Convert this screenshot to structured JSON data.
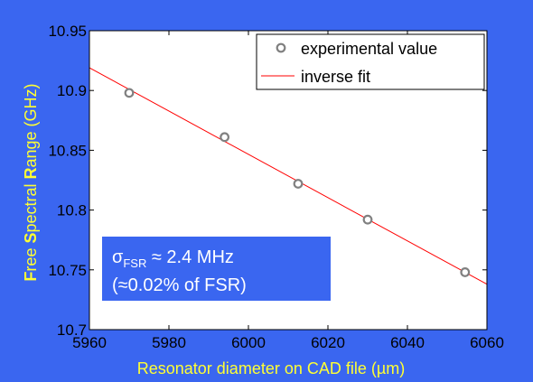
{
  "chart_data": {
    "type": "scatter",
    "xlabel": "Resonator diameter on CAD file (µm)",
    "ylabel_parts": [
      {
        "text": "F",
        "highlight": true
      },
      {
        "text": "ree ",
        "highlight": false
      },
      {
        "text": "S",
        "highlight": true
      },
      {
        "text": "pectral ",
        "highlight": false
      },
      {
        "text": "R",
        "highlight": true
      },
      {
        "text": "ange (GHz)",
        "highlight": false
      }
    ],
    "xlim": [
      5960,
      6060
    ],
    "ylim": [
      10.7,
      10.95
    ],
    "xticks": [
      "5960",
      "5980",
      "6000",
      "6020",
      "6040",
      "6060"
    ],
    "yticks": [
      "10.7",
      "10.75",
      "10.8",
      "10.85",
      "10.9",
      "10.95"
    ],
    "grid": false,
    "legend_position": "top-right",
    "series": [
      {
        "name": "experimental value",
        "kind": "markers",
        "color": "#808080",
        "x": [
          5970,
          5994,
          6012.5,
          6030,
          6054.5
        ],
        "y": [
          10.898,
          10.861,
          10.822,
          10.792,
          10.748
        ]
      },
      {
        "name": "inverse fit",
        "kind": "line",
        "color": "#ff0000",
        "x": [
          5960,
          6060
        ],
        "y": [
          10.919,
          10.738
        ]
      }
    ],
    "annotation": {
      "symbol": "σ",
      "subscript": "FSR",
      "line1_rest": " ≈ 2.4 MHz",
      "line2": "(≈0.02% of FSR)"
    },
    "colors": {
      "background": "#3a66f0",
      "axis_label": "#ffff33",
      "annotation_box": "#3a66f0",
      "plot_area": "#ffffff"
    }
  }
}
